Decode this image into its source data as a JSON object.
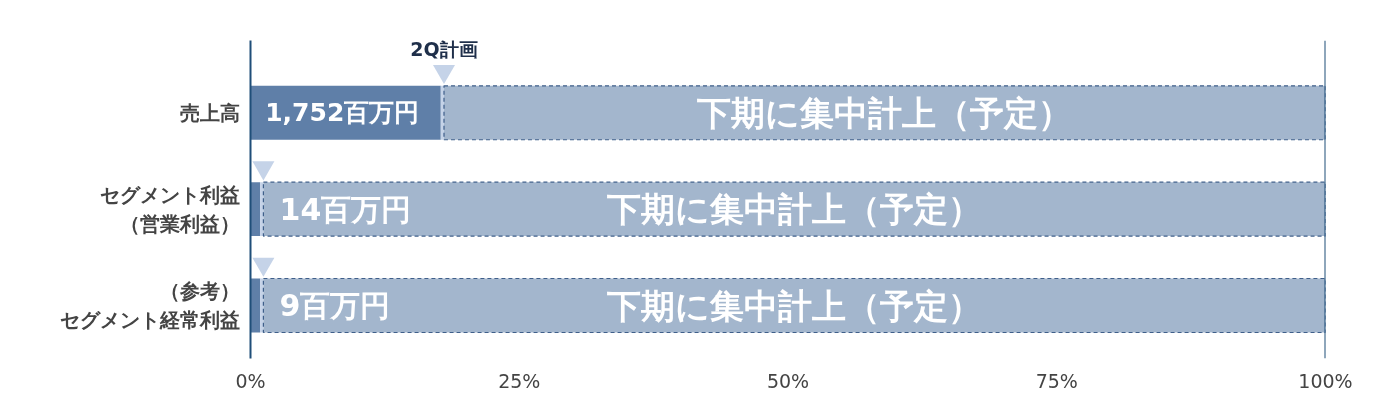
{
  "chart_data": {
    "type": "bar",
    "orientation": "horizontal",
    "stacked": true,
    "categories": [
      "売上高",
      "セグメント利益（営業利益）",
      "（参考）セグメント経常利益"
    ],
    "series": [
      {
        "color": "#5f7fa8",
        "values": [
          17.7,
          0.9,
          0.9
        ]
      },
      {
        "color": "#c5d3e8",
        "values": [
          0.3,
          0.3,
          0.3
        ]
      },
      {
        "color": "#a3b6cd",
        "values": [
          82,
          98.8,
          98.8
        ],
        "line_style": "dashed",
        "value_labels": [
          "下期に集中計上（予定）",
          "下期に集中計上（予定）",
          "下期に集中計上（予定）"
        ]
      },
      {
        "type": "scatter",
        "marker": "triangle",
        "color": "#c5d3e8",
        "values": [
          18,
          1.2,
          1.2
        ]
      }
    ],
    "xlim": [
      0,
      100
    ],
    "xticks": [
      {
        "value": 0,
        "label": "0%"
      },
      {
        "value": 25,
        "label": "25%"
      },
      {
        "value": 50,
        "label": "50%"
      },
      {
        "value": 75,
        "label": "75%"
      },
      {
        "value": 100,
        "label": "100%"
      }
    ],
    "ref_lines": [
      {
        "axis": "x",
        "value": 100,
        "label": null,
        "color": "#1f4e79"
      }
    ],
    "annotations": [
      {
        "text": "2Q計画",
        "x": 18,
        "y": "売上高"
      },
      {
        "text": "1,752百万円",
        "x": 17.7,
        "y": "売上高"
      },
      {
        "text": "14百万円",
        "x": 0.9,
        "y": "セグメント利益（営業利益）"
      },
      {
        "text": "9百万円",
        "x": 0.9,
        "y": "（参考）セグメント経常利益"
      }
    ],
    "grid": false
  }
}
